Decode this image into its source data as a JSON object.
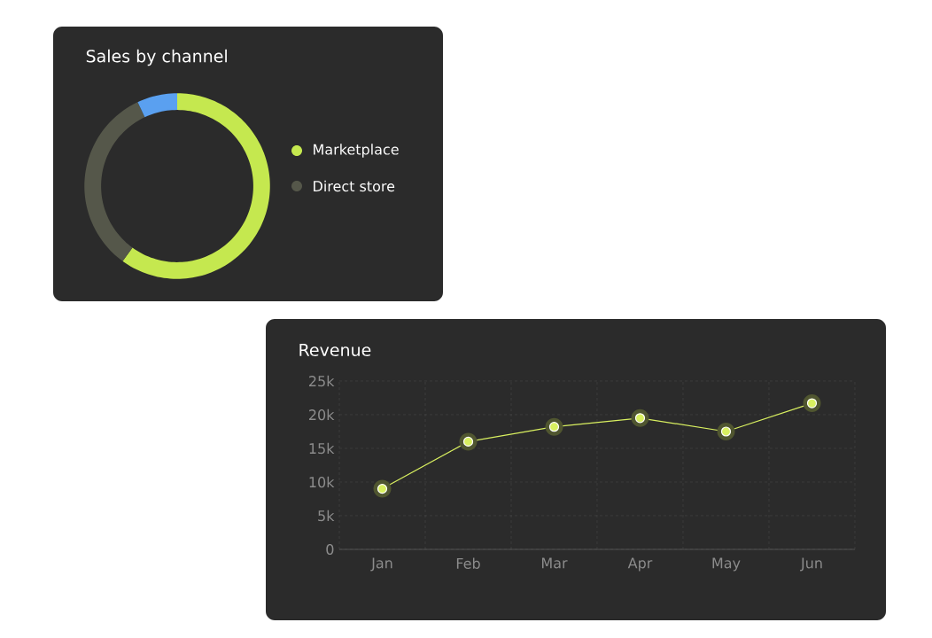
{
  "chart_data": [
    {
      "type": "donut",
      "title": "Sales by channel",
      "categories": [
        "Marketplace",
        "Direct store",
        null
      ],
      "values": [
        60,
        33,
        7
      ],
      "colors": [
        "#c5e84f",
        "#55574a",
        "#5aa0f0"
      ],
      "legend": "right"
    },
    {
      "type": "line",
      "title": "Revenue",
      "categories": [
        "Jan",
        "Feb",
        "Mar",
        "Apr",
        "May",
        "Jun"
      ],
      "values": [
        9000,
        16000,
        18200,
        19500,
        17500,
        21700
      ],
      "color": "#d9f060",
      "ylim": [
        0,
        25000
      ],
      "yticks": [
        {
          "value": 0,
          "label": "0"
        },
        {
          "value": 5000,
          "label": "5k"
        },
        {
          "value": 10000,
          "label": "10k"
        },
        {
          "value": 15000,
          "label": "15k"
        },
        {
          "value": 20000,
          "label": "20k"
        },
        {
          "value": 25000,
          "label": "25k"
        }
      ],
      "grid": true,
      "marker": "circle"
    }
  ]
}
